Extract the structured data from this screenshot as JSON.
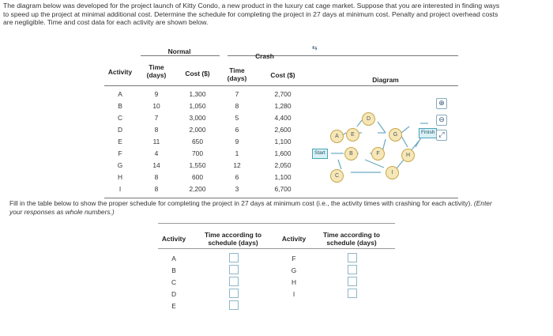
{
  "intro": {
    "line1": "The diagram below was developed for the project launch of Kitty Condo, a new product in the luxury cat cage market. Suppose that you are interested in finding ways",
    "line2": "to speed up the project at minimal additional cost. Determine the schedule for completing the project in 27 days at minimum cost. Penalty and project overhead costs",
    "line3": "are negligible. Time and cost data for each activity are shown below."
  },
  "table": {
    "group_normal": "Normal",
    "group_crash": "Crash",
    "col_activity": "Activity",
    "col_normal_time_1": "Time",
    "col_normal_time_2": "(days)",
    "col_normal_cost": "Cost ($)",
    "col_crash_time_1": "Time",
    "col_crash_time_2": "(days)",
    "col_crash_cost": "Cost ($)",
    "col_diagram": "Diagram",
    "rows": [
      {
        "activity": "A",
        "n_time": "9",
        "n_cost": "1,300",
        "c_time": "7",
        "c_cost": "2,700"
      },
      {
        "activity": "B",
        "n_time": "10",
        "n_cost": "1,050",
        "c_time": "8",
        "c_cost": "1,280"
      },
      {
        "activity": "C",
        "n_time": "7",
        "n_cost": "3,000",
        "c_time": "5",
        "c_cost": "4,400"
      },
      {
        "activity": "D",
        "n_time": "8",
        "n_cost": "2,000",
        "c_time": "6",
        "c_cost": "2,600"
      },
      {
        "activity": "E",
        "n_time": "11",
        "n_cost": "650",
        "c_time": "9",
        "c_cost": "1,100"
      },
      {
        "activity": "F",
        "n_time": "4",
        "n_cost": "700",
        "c_time": "1",
        "c_cost": "1,600"
      },
      {
        "activity": "G",
        "n_time": "14",
        "n_cost": "1,550",
        "c_time": "12",
        "c_cost": "2,050"
      },
      {
        "activity": "H",
        "n_time": "8",
        "n_cost": "600",
        "c_time": "6",
        "c_cost": "1,100"
      },
      {
        "activity": "I",
        "n_time": "8",
        "n_cost": "2,200",
        "c_time": "3",
        "c_cost": "6,700"
      }
    ]
  },
  "diagram": {
    "start": "Start",
    "finish": "Finish",
    "nodes": [
      "A",
      "B",
      "C",
      "D",
      "E",
      "F",
      "G",
      "H",
      "I"
    ]
  },
  "fill_note": {
    "text": "Fill in the table below to show the proper schedule for completing the project in 27 days at minimum cost (i.e., the activity times with crashing for each activity).",
    "italic": "(Enter",
    "line2": "your responses as whole numbers.)"
  },
  "answer_table": {
    "col_activity": "Activity",
    "col_time_1": "Time according to",
    "col_time_2": "schedule (days)",
    "left_rows": [
      "A",
      "B",
      "C",
      "D",
      "E"
    ],
    "right_rows": [
      "F",
      "G",
      "H",
      "I"
    ]
  }
}
